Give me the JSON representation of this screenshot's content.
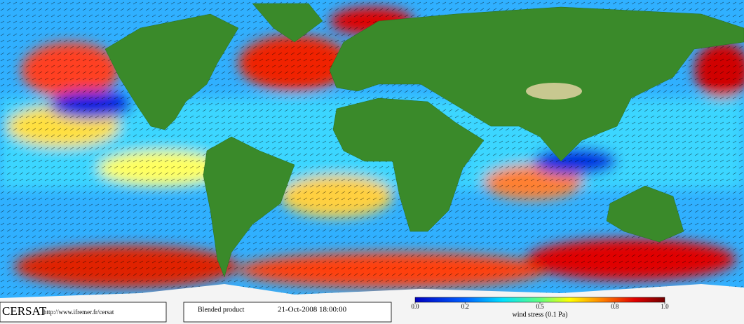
{
  "footer": {
    "logo": "CERSAT",
    "url": "http://www.ifremer.fr/cersat",
    "product": "Blended product",
    "date": "21-Oct-2008 18:00:00"
  },
  "colorbar": {
    "lim": [
      0,
      1
    ],
    "ticks": [
      {
        "value": 0,
        "label": "0.0"
      },
      {
        "value": 0.2,
        "label": "0.2"
      },
      {
        "value": 0.5,
        "label": "0.5"
      },
      {
        "value": 0.8,
        "label": "0.8"
      },
      {
        "value": 1,
        "label": "1.0"
      }
    ],
    "label": "wind stress (0.1 Pa)"
  }
}
